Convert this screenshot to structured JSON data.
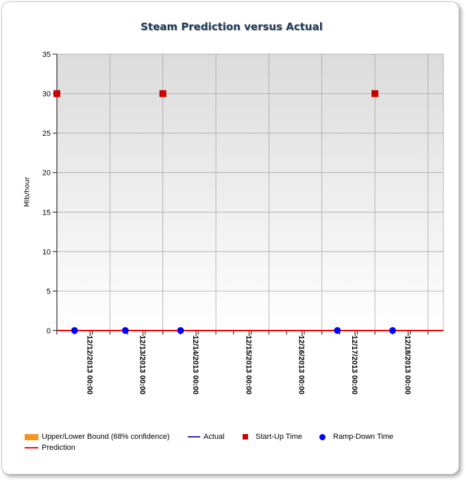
{
  "chart_data": {
    "type": "scatter",
    "title": "Steam Prediction versus Actual",
    "ylabel": "Mlb/hour",
    "xlabel": "",
    "ylim": [
      0,
      35
    ],
    "yticks": [
      0,
      5,
      10,
      15,
      20,
      25,
      30,
      35
    ],
    "x_tick_labels": [
      "12/12/2013 00:00",
      "12/13/2013 00:00",
      "12/14/2013 00:00",
      "12/15/2013 00:00",
      "12/16/2013 00:00",
      "12/17/2013 00:00",
      "12/18/2013 00:00"
    ],
    "grid": true,
    "legend_position": "bottom",
    "series": [
      {
        "name": "Upper/Lower Bound (68% confidence)",
        "kind": "area",
        "color": "#f7941d",
        "points": []
      },
      {
        "name": "Actual",
        "kind": "line",
        "color": "#3a1fa8",
        "points": []
      },
      {
        "name": "Start-Up Time",
        "kind": "square",
        "color": "#cc0000",
        "points": [
          {
            "x": "12/11/2013 09:00",
            "y": 30
          },
          {
            "x": "12/13/2013 09:00",
            "y": 30
          },
          {
            "x": "12/17/2013 09:00",
            "y": 30
          }
        ]
      },
      {
        "name": "Ramp-Down Time",
        "kind": "dot",
        "color": "#0000ff",
        "points": [
          {
            "x": "12/11/2013 17:00",
            "y": 0
          },
          {
            "x": "12/12/2013 16:00",
            "y": 0
          },
          {
            "x": "12/13/2013 17:00",
            "y": 0
          },
          {
            "x": "12/16/2013 16:00",
            "y": 0
          },
          {
            "x": "12/17/2013 17:00",
            "y": 0
          }
        ]
      },
      {
        "name": "Prediction",
        "kind": "line",
        "color": "#ff0000",
        "points": [
          {
            "x": "12/11/2013 09:00",
            "y": 0
          },
          {
            "x": "12/18/2013 16:00",
            "y": 0
          }
        ]
      }
    ]
  }
}
